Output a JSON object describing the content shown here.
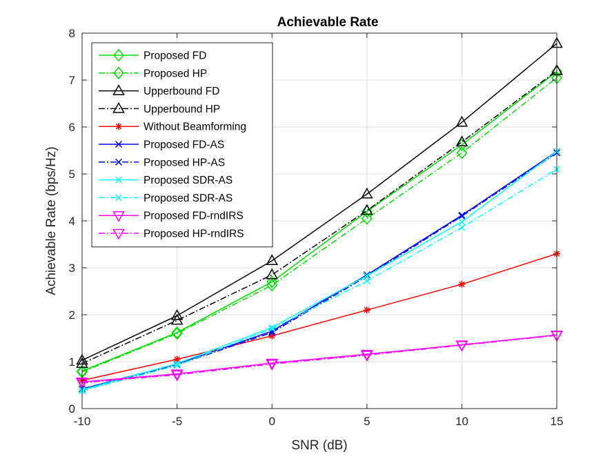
{
  "chart_data": {
    "type": "line",
    "title": "Achievable Rate",
    "xlabel": "SNR (dB)",
    "ylabel": "Achievable Rate (bps/Hz)",
    "xlim": [
      -10,
      15
    ],
    "ylim": [
      0,
      8
    ],
    "x": [
      -10,
      -5,
      0,
      5,
      10,
      15
    ],
    "xticks": [
      "-10",
      "-5",
      "0",
      "5",
      "10",
      "15"
    ],
    "yticks": [
      "0",
      "1",
      "2",
      "3",
      "4",
      "5",
      "6",
      "7",
      "8"
    ],
    "grid": true,
    "legend_position": "top-left",
    "series": [
      {
        "name": "Proposed FD",
        "values": [
          0.8,
          1.62,
          2.7,
          4.2,
          5.62,
          7.18
        ],
        "color": "#00dd00",
        "dash": "solid",
        "marker": "diamond"
      },
      {
        "name": "Proposed HP",
        "values": [
          0.78,
          1.6,
          2.63,
          4.05,
          5.45,
          7.05
        ],
        "color": "#00dd00",
        "dash": "dashdot",
        "marker": "diamond"
      },
      {
        "name": "Upperbound FD",
        "values": [
          1.03,
          1.98,
          3.15,
          4.57,
          6.1,
          7.78
        ],
        "color": "#000000",
        "dash": "solid",
        "marker": "triangle"
      },
      {
        "name": "Upperbound HP",
        "values": [
          0.96,
          1.88,
          2.85,
          4.22,
          5.68,
          7.2
        ],
        "color": "#000000",
        "dash": "dashdot",
        "marker": "triangle"
      },
      {
        "name": "Without Beamforming",
        "values": [
          0.6,
          1.05,
          1.55,
          2.1,
          2.65,
          3.3
        ],
        "color": "#ff0000",
        "dash": "solid",
        "marker": "star"
      },
      {
        "name": "Proposed FD-AS",
        "values": [
          0.42,
          0.95,
          1.65,
          2.85,
          4.12,
          5.48
        ],
        "color": "#0000ff",
        "dash": "solid",
        "marker": "cross"
      },
      {
        "name": "Proposed HP-AS",
        "values": [
          0.4,
          0.93,
          1.62,
          2.82,
          4.1,
          5.45
        ],
        "color": "#0000ff",
        "dash": "dashdot",
        "marker": "cross"
      },
      {
        "name": "Proposed SDR-AS",
        "values": [
          0.4,
          0.96,
          1.73,
          2.83,
          3.98,
          5.48
        ],
        "color": "#00ffff",
        "dash": "solid",
        "marker": "cross"
      },
      {
        "name": "Proposed SDR-AS",
        "values": [
          0.38,
          0.92,
          1.7,
          2.72,
          3.86,
          5.1
        ],
        "color": "#00ffff",
        "dash": "dashdot",
        "marker": "cross"
      },
      {
        "name": "Proposed FD-rndIRS",
        "values": [
          0.57,
          0.74,
          0.97,
          1.16,
          1.36,
          1.57
        ],
        "color": "#ff00ff",
        "dash": "solid",
        "marker": "triangle-down"
      },
      {
        "name": "Proposed HP-rndIRS",
        "values": [
          0.55,
          0.72,
          0.95,
          1.14,
          1.35,
          1.56
        ],
        "color": "#ff00ff",
        "dash": "dashdot",
        "marker": "triangle-down"
      }
    ]
  }
}
